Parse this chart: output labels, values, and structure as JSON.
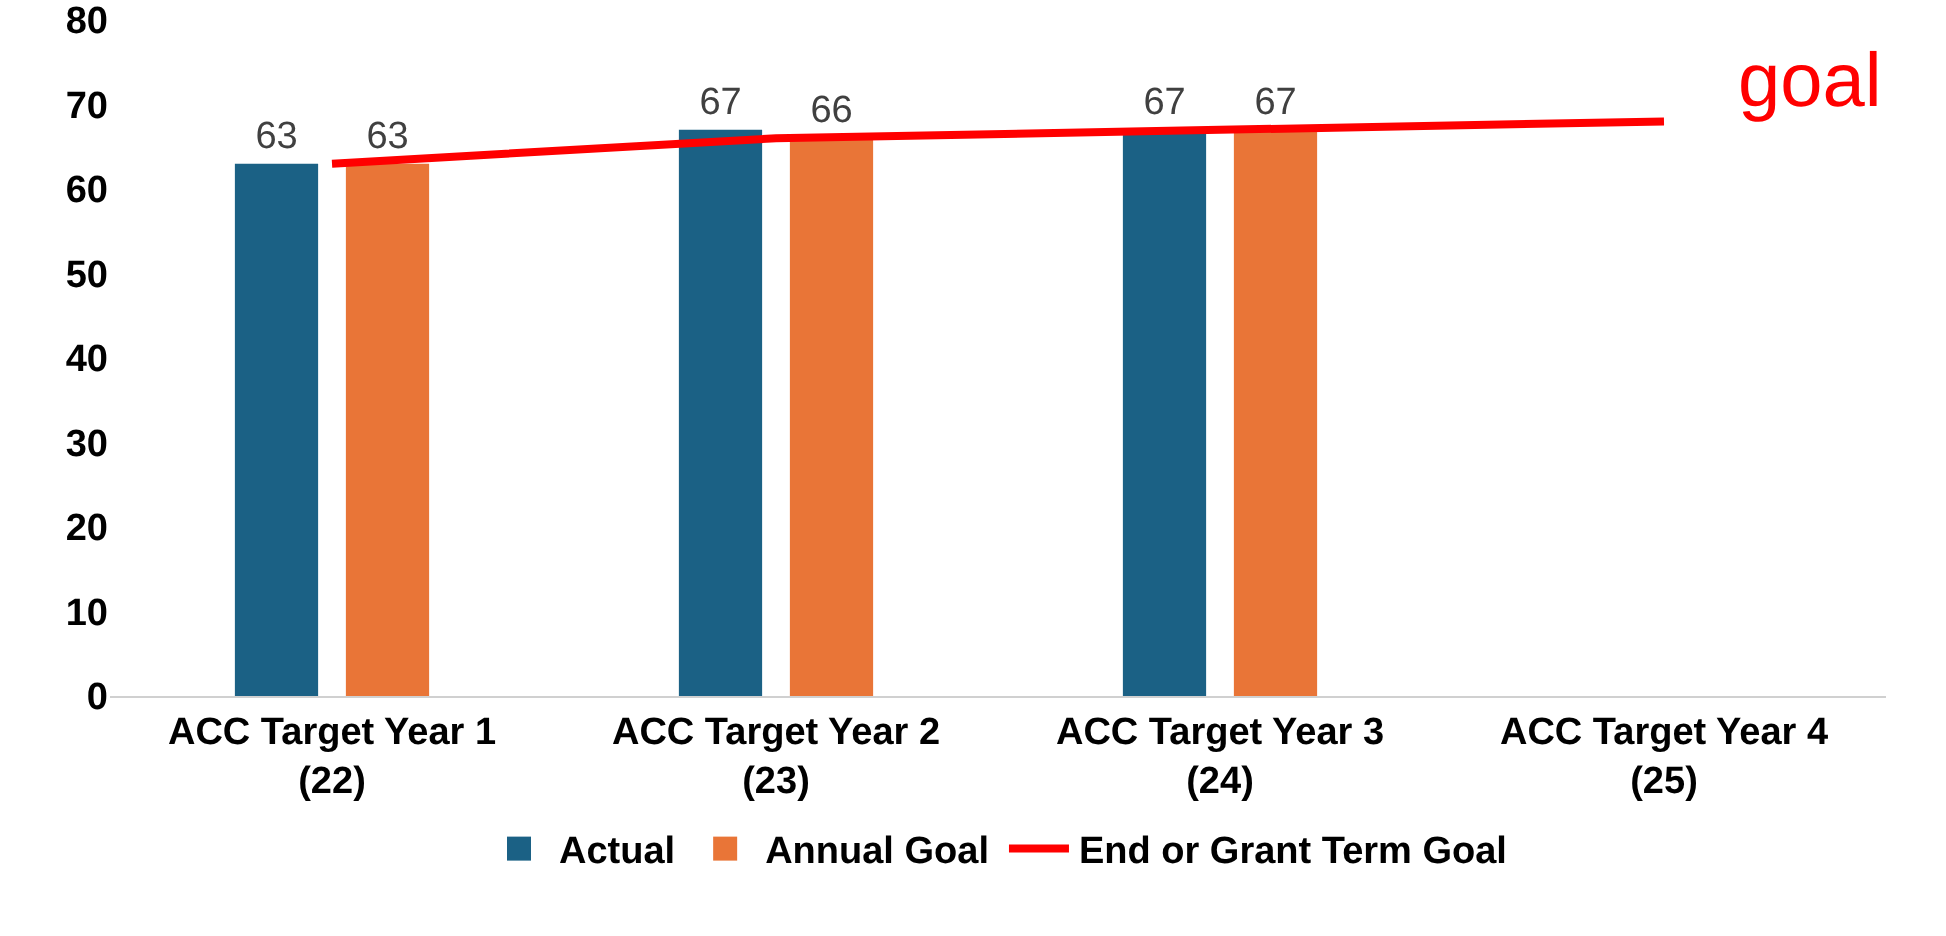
{
  "chart_data": {
    "type": "bar",
    "categories": [
      "ACC Target Year 1\n(22)",
      "ACC Target Year 2\n(23)",
      "ACC Target Year 3\n(24)",
      "ACC Target Year 4\n(25)"
    ],
    "series": [
      {
        "name": "Actual",
        "color": "#1b6185",
        "values": [
          63,
          67,
          67,
          null
        ],
        "value_labels": [
          "63",
          "67",
          "67",
          null
        ]
      },
      {
        "name": "Annual Goal",
        "color": "#e97537",
        "values": [
          63,
          66,
          67,
          null
        ],
        "value_labels": [
          "63",
          "66",
          "67",
          null
        ]
      },
      {
        "name": "End or Grant Term Goal",
        "type": "line",
        "color": "#ff0000",
        "values": [
          63,
          66,
          67,
          68
        ]
      }
    ],
    "ylim": [
      0,
      80
    ],
    "yticks": [
      0,
      10,
      20,
      30,
      40,
      50,
      60,
      70,
      80
    ],
    "grid": false,
    "legend": "bottom",
    "annotations": [
      "goal"
    ]
  }
}
